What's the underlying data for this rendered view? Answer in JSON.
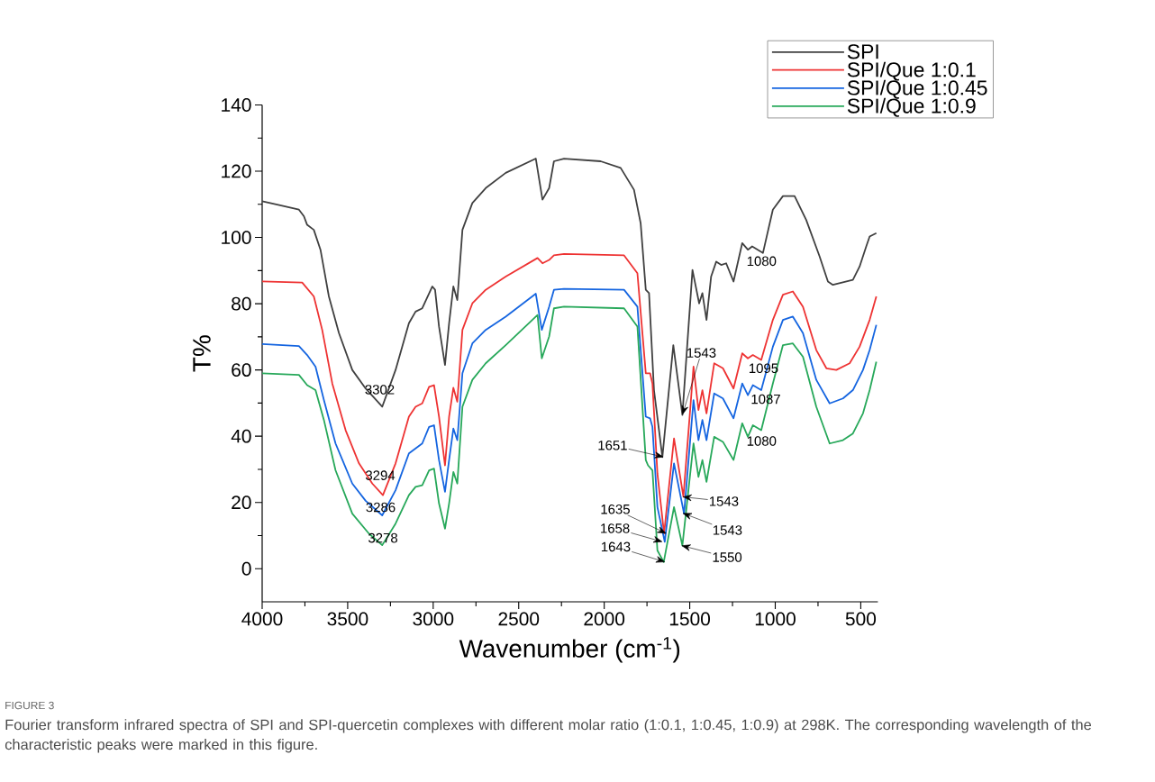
{
  "chart_data": {
    "type": "line",
    "xlabel": "Wavenumber (cm$^{-1}$)",
    "ylabel": "T%",
    "xlim": [
      4000,
      400
    ],
    "ylim": [
      -10,
      140
    ],
    "xticks": [
      4000,
      3500,
      3000,
      2500,
      2000,
      1500,
      1000,
      500
    ],
    "yticks": [
      0,
      20,
      40,
      60,
      80,
      100,
      120,
      140
    ],
    "legend": "top right",
    "series": [
      {
        "name": "SPI",
        "color": "#404040",
        "x": [
          4000,
          3912,
          3785,
          3756,
          3737,
          3698,
          3659,
          3610,
          3551,
          3473,
          3395,
          3298,
          3220,
          3142,
          3103,
          3064,
          3005,
          2989,
          2966,
          2931,
          2907,
          2882,
          2859,
          2829,
          2771,
          2693,
          2576,
          2400,
          2361,
          2322,
          2294,
          2235,
          2021,
          1904,
          1826,
          1787,
          1757,
          1738,
          1709,
          1660,
          1596,
          1543,
          1484,
          1445,
          1426,
          1402,
          1375,
          1345,
          1316,
          1287,
          1244,
          1193,
          1160,
          1135,
          1072,
          1014,
          955,
          887,
          819,
          741,
          692,
          663,
          546,
          507,
          468,
          448,
          409
        ],
        "values": [
          110.9,
          109.9,
          108.4,
          106.4,
          103.8,
          102.3,
          96.3,
          82.2,
          71.1,
          60.0,
          54.4,
          48.9,
          60.0,
          74.1,
          77.6,
          78.6,
          85.2,
          84.2,
          73.1,
          61.5,
          74.1,
          85.2,
          81.1,
          102.3,
          110.4,
          114.9,
          119.5,
          123.8,
          111.4,
          114.9,
          123.0,
          123.8,
          123.0,
          121.0,
          114.4,
          104.3,
          84.2,
          83.2,
          53.9,
          33.7,
          67.5,
          46.4,
          90.2,
          80.1,
          83.2,
          75.1,
          88.2,
          92.7,
          91.7,
          92.2,
          86.7,
          98.3,
          96.3,
          97.3,
          95.3,
          108.4,
          112.5,
          112.5,
          105.3,
          94.3,
          86.7,
          85.7,
          87.2,
          91.2,
          97.3,
          100.3,
          101.3
        ]
      },
      {
        "name": "SPI/Que 1:0.1",
        "color": "#ee3333",
        "x": [
          4000,
          3766,
          3698,
          3649,
          3590,
          3512,
          3434,
          3356,
          3294,
          3220,
          3142,
          3103,
          3064,
          3024,
          2995,
          2966,
          2931,
          2907,
          2882,
          2859,
          2829,
          2771,
          2693,
          2576,
          2390,
          2361,
          2322,
          2294,
          2235,
          1884,
          1806,
          1757,
          1732,
          1718,
          1689,
          1650,
          1592,
          1537,
          1478,
          1449,
          1426,
          1402,
          1357,
          1306,
          1244,
          1193,
          1160,
          1131,
          1082,
          1014,
          955,
          897,
          838,
          760,
          701,
          643,
          565,
          507,
          448,
          409
        ],
        "values": [
          86.7,
          86.4,
          82.2,
          72.1,
          55.9,
          41.8,
          31.8,
          25.7,
          22.2,
          31.8,
          45.9,
          48.9,
          49.9,
          54.9,
          55.4,
          45.9,
          31.2,
          45.9,
          54.6,
          50.4,
          72.1,
          80.1,
          84.2,
          88.2,
          93.8,
          92.2,
          93.2,
          94.6,
          95.0,
          94.6,
          89.2,
          59.0,
          59.0,
          55.9,
          28.7,
          10.6,
          39.3,
          21.7,
          61.0,
          47.9,
          53.9,
          46.9,
          62.0,
          60.5,
          54.4,
          65.0,
          63.5,
          64.5,
          63.0,
          75.1,
          82.7,
          83.7,
          79.1,
          66.0,
          60.5,
          60.0,
          62.0,
          67.0,
          75.1,
          82.2
        ]
      },
      {
        "name": "SPI/Que 1:0.45",
        "color": "#1565e0",
        "x": [
          4000,
          3785,
          3737,
          3688,
          3639,
          3571,
          3473,
          3395,
          3298,
          3220,
          3142,
          3064,
          3024,
          2995,
          2966,
          2931,
          2907,
          2882,
          2859,
          2829,
          2771,
          2693,
          2576,
          2400,
          2365,
          2322,
          2294,
          2235,
          1884,
          1806,
          1757,
          1732,
          1718,
          1689,
          1646,
          1592,
          1533,
          1478,
          1449,
          1426,
          1402,
          1357,
          1306,
          1244,
          1193,
          1160,
          1131,
          1082,
          1014,
          955,
          897,
          838,
          760,
          682,
          604,
          546,
          487,
          448,
          409
        ],
        "values": [
          67.8,
          67.2,
          64.5,
          61.0,
          50.9,
          37.8,
          25.7,
          20.5,
          16.1,
          23.7,
          34.8,
          37.8,
          42.8,
          43.3,
          32.8,
          23.2,
          32.8,
          42.3,
          38.8,
          59.0,
          68.0,
          72.1,
          76.1,
          83.0,
          72.1,
          79.1,
          84.2,
          84.5,
          84.2,
          79.1,
          45.9,
          45.4,
          42.8,
          18.6,
          8.1,
          31.8,
          16.6,
          50.9,
          38.8,
          44.9,
          38.8,
          52.9,
          51.4,
          45.4,
          55.9,
          52.4,
          55.4,
          53.9,
          67.0,
          75.1,
          76.1,
          71.1,
          57.0,
          49.9,
          51.4,
          53.9,
          60.0,
          66.0,
          73.6
        ]
      },
      {
        "name": "SPI/Que 1:0.9",
        "color": "#27a85a",
        "x": [
          4000,
          3785,
          3737,
          3688,
          3639,
          3571,
          3473,
          3376,
          3298,
          3220,
          3142,
          3103,
          3064,
          3024,
          2995,
          2966,
          2931,
          2907,
          2882,
          2859,
          2829,
          2771,
          2693,
          2576,
          2390,
          2365,
          2322,
          2294,
          2235,
          1884,
          1806,
          1757,
          1744,
          1718,
          1689,
          1652,
          1592,
          1543,
          1478,
          1449,
          1426,
          1402,
          1357,
          1306,
          1244,
          1193,
          1160,
          1131,
          1082,
          1014,
          955,
          897,
          838,
          760,
          682,
          604,
          546,
          487,
          448,
          409
        ],
        "values": [
          59.0,
          58.5,
          55.4,
          53.9,
          44.9,
          29.7,
          16.6,
          10.6,
          7.1,
          13.6,
          22.2,
          24.7,
          25.2,
          29.7,
          30.2,
          19.7,
          12.1,
          19.7,
          29.2,
          25.7,
          48.9,
          57.0,
          62.0,
          67.5,
          76.6,
          63.5,
          70.1,
          78.6,
          79.1,
          78.6,
          73.1,
          32.8,
          31.2,
          29.7,
          5.5,
          2.0,
          18.6,
          7.0,
          37.8,
          27.7,
          32.8,
          26.2,
          39.8,
          38.3,
          32.8,
          43.9,
          39.8,
          43.3,
          41.8,
          55.9,
          67.5,
          68.0,
          64.0,
          48.9,
          37.8,
          38.8,
          40.8,
          46.9,
          53.9,
          62.5
        ]
      }
    ],
    "annotations": [
      {
        "text": "3302",
        "x": 3302,
        "y": 48.9
      },
      {
        "text": "3294",
        "x": 3294,
        "y": 22.2
      },
      {
        "text": "3286",
        "x": 3286,
        "y": 16.1
      },
      {
        "text": "3278",
        "x": 3278,
        "y": 7.1
      },
      {
        "text": "1651",
        "x": 1651,
        "y": 33.7
      },
      {
        "text": "1543",
        "x": 1543,
        "y": 46.4
      },
      {
        "text": "1635",
        "x": 1635,
        "y": 10.6
      },
      {
        "text": "1658",
        "x": 1658,
        "y": 8.1
      },
      {
        "text": "1643",
        "x": 1643,
        "y": 2.0
      },
      {
        "text": "1543",
        "x": 1543,
        "y": 21.7
      },
      {
        "text": "1543",
        "x": 1543,
        "y": 16.8
      },
      {
        "text": "1550",
        "x": 1550,
        "y": 7.0
      },
      {
        "text": "1080",
        "x": 1080,
        "y": 95.3
      },
      {
        "text": "1095",
        "x": 1095,
        "y": 63.5
      },
      {
        "text": "1087",
        "x": 1087,
        "y": 53.9
      },
      {
        "text": "1080",
        "x": 1080,
        "y": 41.8
      },
      "FIGURE 3",
      "Fourier transform infrared spectra of SPI and SPI-quercetin complexes with different molar ratio (1:0.1, 1:0.45, 1:0.9) at 298K. The corresponding wavelength of the characteristic peaks were marked in this figure."
    ]
  }
}
